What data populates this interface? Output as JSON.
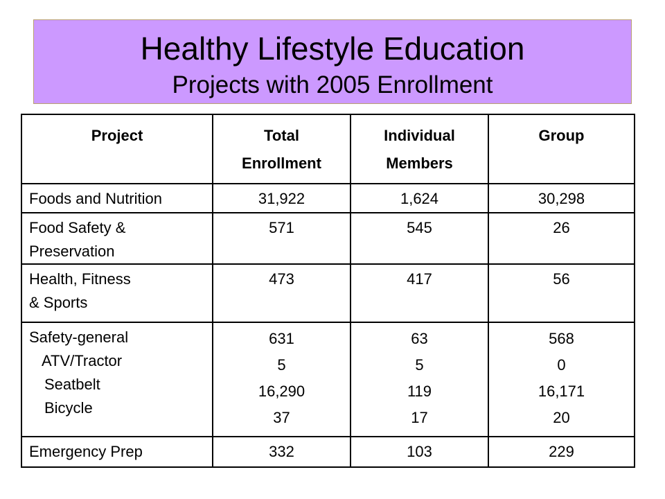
{
  "title": "Healthy Lifestyle Education",
  "subtitle": "Projects with 2005 Enrollment",
  "colors": {
    "title_background": "#cc99ff",
    "border": "#000000"
  },
  "table": {
    "headers": {
      "project": "Project",
      "total_line1": "Total",
      "total_line2": "Enrollment",
      "individual_line1": "Individual",
      "individual_line2": "Members",
      "group": "Group"
    },
    "rows": [
      {
        "project_lines": [
          "Foods and Nutrition"
        ],
        "total": [
          "31,922"
        ],
        "individual": [
          "1,624"
        ],
        "group": [
          "30,298"
        ]
      },
      {
        "project_lines": [
          "Food Safety &",
          "Preservation"
        ],
        "total": [
          "571"
        ],
        "individual": [
          "545"
        ],
        "group": [
          "26"
        ]
      },
      {
        "project_lines": [
          "Health, Fitness",
          "& Sports"
        ],
        "total": [
          "473"
        ],
        "individual": [
          "417"
        ],
        "group": [
          "56"
        ]
      },
      {
        "project_lines": [
          "Safety-general",
          "ATV/Tractor",
          "Seatbelt",
          "Bicycle"
        ],
        "total": [
          "631",
          "5",
          "16,290",
          "37"
        ],
        "individual": [
          "63",
          "5",
          "119",
          "17"
        ],
        "group": [
          "568",
          "0",
          "16,171",
          "20"
        ]
      },
      {
        "project_lines": [
          "Emergency Prep"
        ],
        "total": [
          "332"
        ],
        "individual": [
          "103"
        ],
        "group": [
          "229"
        ]
      }
    ]
  }
}
